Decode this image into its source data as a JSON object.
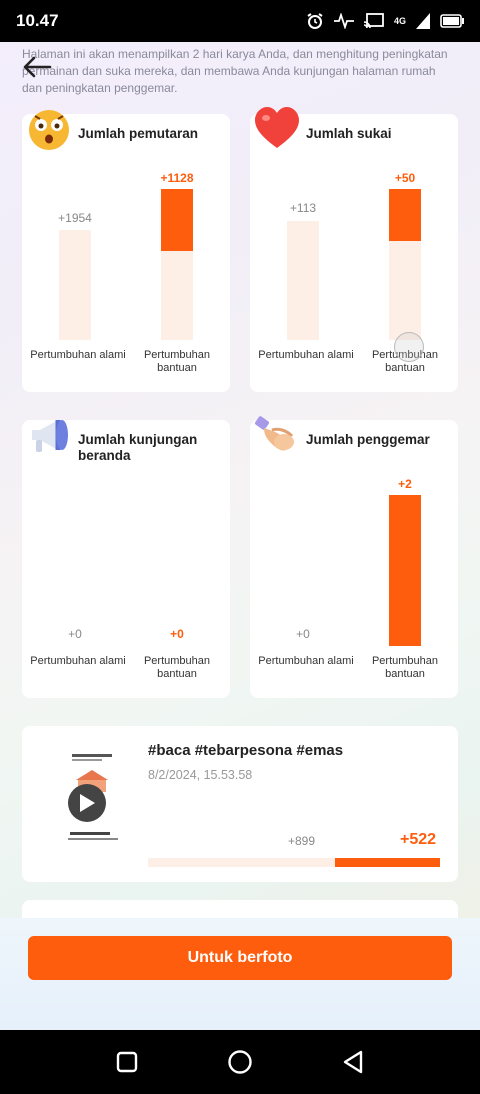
{
  "status_bar": {
    "time": "10.47",
    "network": "4G"
  },
  "intro_text": "Halaman ini akan menampilkan 2 hari karya Anda, dan menghitung peningkatan permainan dan suka mereka, dan membawa Anda kunjungan halaman rumah dan peningkatan penggemar.",
  "cards": [
    {
      "title": "Jumlah pemutaran",
      "icon": "surprised-emoji-icon",
      "natural_label": "+1954",
      "boost_label": "+1128",
      "natural_axis": "Pertumbuhan alami",
      "boost_axis": "Pertumbuhan bantuan"
    },
    {
      "title": "Jumlah sukai",
      "icon": "heart-icon",
      "natural_label": "+113",
      "boost_label": "+50",
      "natural_axis": "Pertumbuhan alami",
      "boost_axis": "Pertumbuhan bantuan"
    },
    {
      "title": "Jumlah kunjungan beranda",
      "icon": "megaphone-icon",
      "natural_label": "+0",
      "boost_label": "+0",
      "natural_axis": "Pertumbuhan alami",
      "boost_axis": "Pertumbuhan bantuan"
    },
    {
      "title": "Jumlah penggemar",
      "icon": "handshake-icon",
      "natural_label": "+0",
      "boost_label": "+2",
      "natural_axis": "Pertumbuhan alami",
      "boost_axis": "Pertumbuhan bantuan"
    }
  ],
  "video": {
    "title": "#baca #tebarpesona #emas",
    "date": "8/2/2024, 15.53.58",
    "natural_label": "+899",
    "boost_label": "+522",
    "boost_fraction": 0.36
  },
  "cta_label": "Untuk berfoto",
  "colors": {
    "accent": "#fd5d0d",
    "bar_bg": "#fdeee6"
  }
}
